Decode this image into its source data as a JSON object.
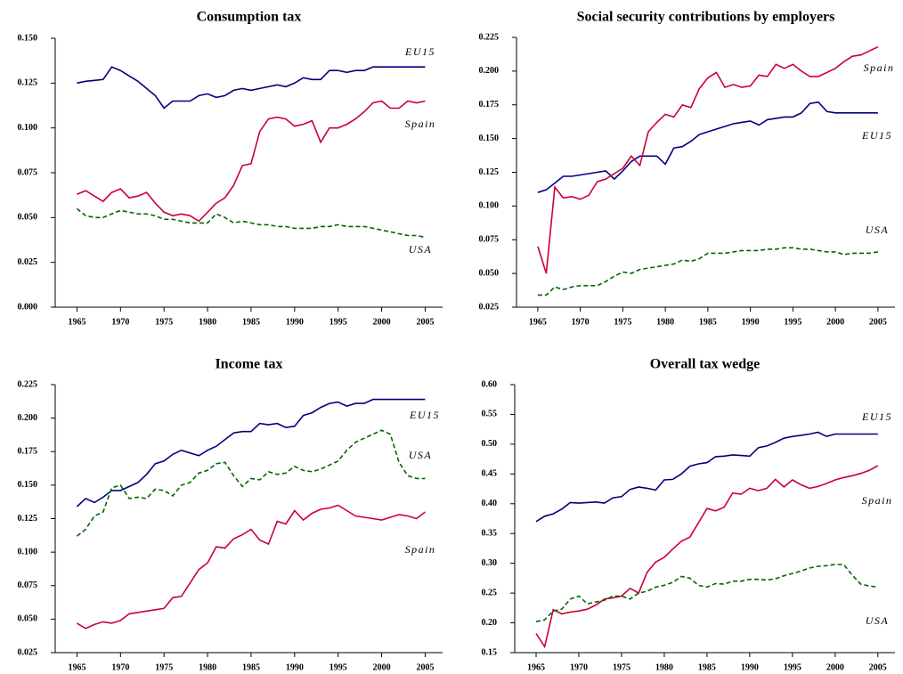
{
  "chart_data": [
    {
      "type": "line",
      "title": "Consumption tax",
      "x": [
        1965,
        1966,
        1967,
        1968,
        1969,
        1970,
        1971,
        1972,
        1973,
        1974,
        1975,
        1976,
        1977,
        1978,
        1979,
        1980,
        1981,
        1982,
        1983,
        1984,
        1985,
        1986,
        1987,
        1988,
        1989,
        1990,
        1991,
        1992,
        1993,
        1994,
        1995,
        1996,
        1997,
        1998,
        1999,
        2000,
        2001,
        2002,
        2003,
        2004,
        2005
      ],
      "xlim": [
        1962.5,
        2007
      ],
      "xticks": [
        1965,
        1970,
        1975,
        1980,
        1985,
        1990,
        1995,
        2000,
        2005
      ],
      "ylim": [
        0,
        0.15
      ],
      "yticks": [
        {
          "value": 0,
          "label": "0.000"
        },
        {
          "value": 0.025,
          "label": "0.025"
        },
        {
          "value": 0.05,
          "label": "0.050"
        },
        {
          "value": 0.075,
          "label": "0.075"
        },
        {
          "value": 0.1,
          "label": "0.100"
        },
        {
          "value": 0.125,
          "label": "0.125"
        },
        {
          "value": 0.15,
          "label": "0.150"
        }
      ],
      "series": [
        {
          "name": "EU15",
          "color": "#000080",
          "line_style": "solid",
          "values": [
            0.125,
            0.126,
            0.1265,
            0.127,
            0.134,
            0.132,
            0.129,
            0.126,
            0.122,
            0.118,
            0.111,
            0.115,
            0.115,
            0.115,
            0.118,
            0.119,
            0.117,
            0.118,
            0.121,
            0.122,
            0.121,
            0.122,
            0.123,
            0.124,
            0.123,
            0.125,
            0.128,
            0.127,
            0.127,
            0.132,
            0.132,
            0.131,
            0.132,
            0.132,
            0.134,
            0.134,
            0.134,
            0.134,
            0.134,
            0.134,
            0.134
          ]
        },
        {
          "name": "Spain",
          "color": "#cc0033",
          "line_style": "solid",
          "values": [
            0.063,
            0.065,
            0.062,
            0.059,
            0.064,
            0.066,
            0.061,
            0.062,
            0.064,
            0.058,
            0.053,
            0.051,
            0.052,
            0.051,
            0.048,
            0.053,
            0.058,
            0.061,
            0.068,
            0.079,
            0.08,
            0.098,
            0.105,
            0.106,
            0.105,
            0.101,
            0.102,
            0.104,
            0.092,
            0.1,
            0.1,
            0.102,
            0.105,
            0.109,
            0.114,
            0.115,
            0.111,
            0.111,
            0.115,
            0.114,
            0.115
          ]
        },
        {
          "name": "USA",
          "color": "#006600",
          "line_style": "dashed",
          "values": [
            0.055,
            0.051,
            0.05,
            0.05,
            0.052,
            0.054,
            0.053,
            0.052,
            0.052,
            0.051,
            0.049,
            0.049,
            0.048,
            0.047,
            0.047,
            0.047,
            0.052,
            0.05,
            0.047,
            0.048,
            0.047,
            0.046,
            0.046,
            0.045,
            0.045,
            0.044,
            0.044,
            0.044,
            0.045,
            0.045,
            0.046,
            0.045,
            0.045,
            0.045,
            0.044,
            0.043,
            0.042,
            0.041,
            0.04,
            0.04,
            0.039
          ]
        }
      ]
    },
    {
      "type": "line",
      "title": "Social security contributions by employers",
      "x": [
        1965,
        1966,
        1967,
        1968,
        1969,
        1970,
        1971,
        1972,
        1973,
        1974,
        1975,
        1976,
        1977,
        1978,
        1979,
        1980,
        1981,
        1982,
        1983,
        1984,
        1985,
        1986,
        1987,
        1988,
        1989,
        1990,
        1991,
        1992,
        1993,
        1994,
        1995,
        1996,
        1997,
        1998,
        1999,
        2000,
        2001,
        2002,
        2003,
        2004,
        2005
      ],
      "xlim": [
        1962.5,
        2007
      ],
      "xticks": [
        1965,
        1970,
        1975,
        1980,
        1985,
        1990,
        1995,
        2000,
        2005
      ],
      "ylim": [
        0.025,
        0.225
      ],
      "yticks": [
        {
          "value": 0.025,
          "label": "0.025"
        },
        {
          "value": 0.05,
          "label": "0.050"
        },
        {
          "value": 0.075,
          "label": "0.075"
        },
        {
          "value": 0.1,
          "label": "0.100"
        },
        {
          "value": 0.125,
          "label": "0.125"
        },
        {
          "value": 0.15,
          "label": "0.150"
        },
        {
          "value": 0.175,
          "label": "0.175"
        },
        {
          "value": 0.2,
          "label": "0.200"
        },
        {
          "value": 0.225,
          "label": "0.225"
        }
      ],
      "series": [
        {
          "name": "EU15",
          "color": "#000080",
          "line_style": "solid",
          "values": [
            0.11,
            0.112,
            0.117,
            0.122,
            0.122,
            0.123,
            0.124,
            0.125,
            0.126,
            0.12,
            0.126,
            0.133,
            0.137,
            0.137,
            0.137,
            0.131,
            0.143,
            0.144,
            0.148,
            0.153,
            0.155,
            0.157,
            0.159,
            0.161,
            0.162,
            0.163,
            0.16,
            0.164,
            0.165,
            0.166,
            0.166,
            0.169,
            0.176,
            0.177,
            0.17,
            0.169,
            0.169,
            0.169,
            0.169,
            0.169,
            0.169
          ]
        },
        {
          "name": "Spain",
          "color": "#cc0033",
          "line_style": "solid",
          "values": [
            0.07,
            0.05,
            0.114,
            0.106,
            0.107,
            0.105,
            0.108,
            0.118,
            0.12,
            0.124,
            0.128,
            0.137,
            0.13,
            0.155,
            0.162,
            0.168,
            0.166,
            0.175,
            0.173,
            0.187,
            0.195,
            0.199,
            0.188,
            0.19,
            0.188,
            0.189,
            0.197,
            0.196,
            0.205,
            0.202,
            0.205,
            0.2,
            0.196,
            0.196,
            0.199,
            0.202,
            0.207,
            0.211,
            0.212,
            0.215,
            0.218
          ]
        },
        {
          "name": "USA",
          "color": "#006600",
          "line_style": "dashed",
          "values": [
            0.034,
            0.034,
            0.04,
            0.038,
            0.04,
            0.041,
            0.041,
            0.041,
            0.044,
            0.048,
            0.051,
            0.05,
            0.053,
            0.054,
            0.055,
            0.056,
            0.057,
            0.06,
            0.059,
            0.061,
            0.065,
            0.065,
            0.065,
            0.066,
            0.067,
            0.067,
            0.067,
            0.068,
            0.068,
            0.069,
            0.069,
            0.068,
            0.068,
            0.067,
            0.066,
            0.066,
            0.064,
            0.065,
            0.065,
            0.065,
            0.066
          ]
        }
      ]
    },
    {
      "type": "line",
      "title": "Income tax",
      "x": [
        1965,
        1966,
        1967,
        1968,
        1969,
        1970,
        1971,
        1972,
        1973,
        1974,
        1975,
        1976,
        1977,
        1978,
        1979,
        1980,
        1981,
        1982,
        1983,
        1984,
        1985,
        1986,
        1987,
        1988,
        1989,
        1990,
        1991,
        1992,
        1993,
        1994,
        1995,
        1996,
        1997,
        1998,
        1999,
        2000,
        2001,
        2002,
        2003,
        2004,
        2005
      ],
      "xlim": [
        1962.5,
        2007
      ],
      "xticks": [
        1965,
        1970,
        1975,
        1980,
        1985,
        1990,
        1995,
        2000,
        2005
      ],
      "ylim": [
        0.025,
        0.225
      ],
      "yticks": [
        {
          "value": 0.025,
          "label": "0.025"
        },
        {
          "value": 0.05,
          "label": "0.050"
        },
        {
          "value": 0.075,
          "label": "0.075"
        },
        {
          "value": 0.1,
          "label": "0.100"
        },
        {
          "value": 0.125,
          "label": "0.125"
        },
        {
          "value": 0.15,
          "label": "0.150"
        },
        {
          "value": 0.175,
          "label": "0.175"
        },
        {
          "value": 0.2,
          "label": "0.200"
        },
        {
          "value": 0.225,
          "label": "0.225"
        }
      ],
      "series": [
        {
          "name": "EU15",
          "color": "#000080",
          "line_style": "solid",
          "values": [
            0.134,
            0.14,
            0.137,
            0.141,
            0.146,
            0.146,
            0.149,
            0.152,
            0.158,
            0.166,
            0.168,
            0.173,
            0.176,
            0.174,
            0.172,
            0.176,
            0.179,
            0.184,
            0.189,
            0.19,
            0.19,
            0.196,
            0.195,
            0.196,
            0.193,
            0.194,
            0.202,
            0.204,
            0.208,
            0.211,
            0.212,
            0.209,
            0.211,
            0.211,
            0.214,
            0.214,
            0.214,
            0.214,
            0.214,
            0.214,
            0.214
          ]
        },
        {
          "name": "Spain",
          "color": "#cc0033",
          "line_style": "solid",
          "values": [
            0.047,
            0.043,
            0.046,
            0.048,
            0.047,
            0.049,
            0.054,
            0.055,
            0.056,
            0.057,
            0.058,
            0.066,
            0.067,
            0.077,
            0.087,
            0.092,
            0.104,
            0.103,
            0.11,
            0.113,
            0.117,
            0.109,
            0.106,
            0.123,
            0.121,
            0.131,
            0.124,
            0.129,
            0.132,
            0.133,
            0.135,
            0.131,
            0.127,
            0.126,
            0.125,
            0.124,
            0.126,
            0.128,
            0.127,
            0.125,
            0.13
          ]
        },
        {
          "name": "USA",
          "color": "#006600",
          "line_style": "dashed",
          "values": [
            0.112,
            0.117,
            0.127,
            0.13,
            0.148,
            0.15,
            0.14,
            0.141,
            0.14,
            0.147,
            0.146,
            0.142,
            0.15,
            0.152,
            0.159,
            0.161,
            0.166,
            0.167,
            0.157,
            0.149,
            0.155,
            0.154,
            0.16,
            0.158,
            0.159,
            0.164,
            0.161,
            0.16,
            0.162,
            0.165,
            0.168,
            0.176,
            0.182,
            0.185,
            0.188,
            0.191,
            0.188,
            0.167,
            0.157,
            0.155,
            0.155
          ]
        }
      ]
    },
    {
      "type": "line",
      "title": "Overall tax wedge",
      "x": [
        1965,
        1966,
        1967,
        1968,
        1969,
        1970,
        1971,
        1972,
        1973,
        1974,
        1975,
        1976,
        1977,
        1978,
        1979,
        1980,
        1981,
        1982,
        1983,
        1984,
        1985,
        1986,
        1987,
        1988,
        1989,
        1990,
        1991,
        1992,
        1993,
        1994,
        1995,
        1996,
        1997,
        1998,
        1999,
        2000,
        2001,
        2002,
        2003,
        2004,
        2005
      ],
      "xlim": [
        1962.5,
        2007
      ],
      "xticks": [
        1965,
        1970,
        1975,
        1980,
        1985,
        1990,
        1995,
        2000,
        2005
      ],
      "ylim": [
        0.15,
        0.6
      ],
      "yticks": [
        {
          "value": 0.15,
          "label": "0.15"
        },
        {
          "value": 0.2,
          "label": "0.20"
        },
        {
          "value": 0.25,
          "label": "0.25"
        },
        {
          "value": 0.3,
          "label": "0.30"
        },
        {
          "value": 0.35,
          "label": "0.35"
        },
        {
          "value": 0.4,
          "label": "0.40"
        },
        {
          "value": 0.45,
          "label": "0.45"
        },
        {
          "value": 0.5,
          "label": "0.50"
        },
        {
          "value": 0.55,
          "label": "0.55"
        },
        {
          "value": 0.6,
          "label": "0.60"
        }
      ],
      "series": [
        {
          "name": "EU15",
          "color": "#000080",
          "line_style": "solid",
          "values": [
            0.37,
            0.379,
            0.383,
            0.391,
            0.402,
            0.401,
            0.402,
            0.403,
            0.401,
            0.41,
            0.412,
            0.424,
            0.428,
            0.426,
            0.423,
            0.44,
            0.441,
            0.45,
            0.463,
            0.467,
            0.469,
            0.479,
            0.48,
            0.482,
            0.481,
            0.48,
            0.494,
            0.497,
            0.503,
            0.51,
            0.513,
            0.515,
            0.517,
            0.52,
            0.513,
            0.517,
            0.517,
            0.517,
            0.517,
            0.517,
            0.517
          ]
        },
        {
          "name": "Spain",
          "color": "#cc0033",
          "line_style": "solid",
          "values": [
            0.182,
            0.16,
            0.222,
            0.215,
            0.218,
            0.22,
            0.223,
            0.23,
            0.24,
            0.242,
            0.245,
            0.258,
            0.25,
            0.285,
            0.302,
            0.31,
            0.324,
            0.337,
            0.344,
            0.368,
            0.392,
            0.388,
            0.394,
            0.418,
            0.416,
            0.426,
            0.422,
            0.426,
            0.441,
            0.428,
            0.44,
            0.432,
            0.426,
            0.429,
            0.434,
            0.44,
            0.444,
            0.447,
            0.451,
            0.456,
            0.464
          ]
        },
        {
          "name": "USA",
          "color": "#006600",
          "line_style": "dashed",
          "values": [
            0.202,
            0.205,
            0.22,
            0.223,
            0.24,
            0.245,
            0.232,
            0.235,
            0.238,
            0.245,
            0.245,
            0.24,
            0.25,
            0.253,
            0.26,
            0.263,
            0.268,
            0.278,
            0.275,
            0.263,
            0.26,
            0.266,
            0.265,
            0.27,
            0.27,
            0.273,
            0.273,
            0.272,
            0.274,
            0.279,
            0.283,
            0.287,
            0.292,
            0.295,
            0.296,
            0.298,
            0.298,
            0.28,
            0.265,
            0.262,
            0.26
          ]
        }
      ]
    }
  ]
}
